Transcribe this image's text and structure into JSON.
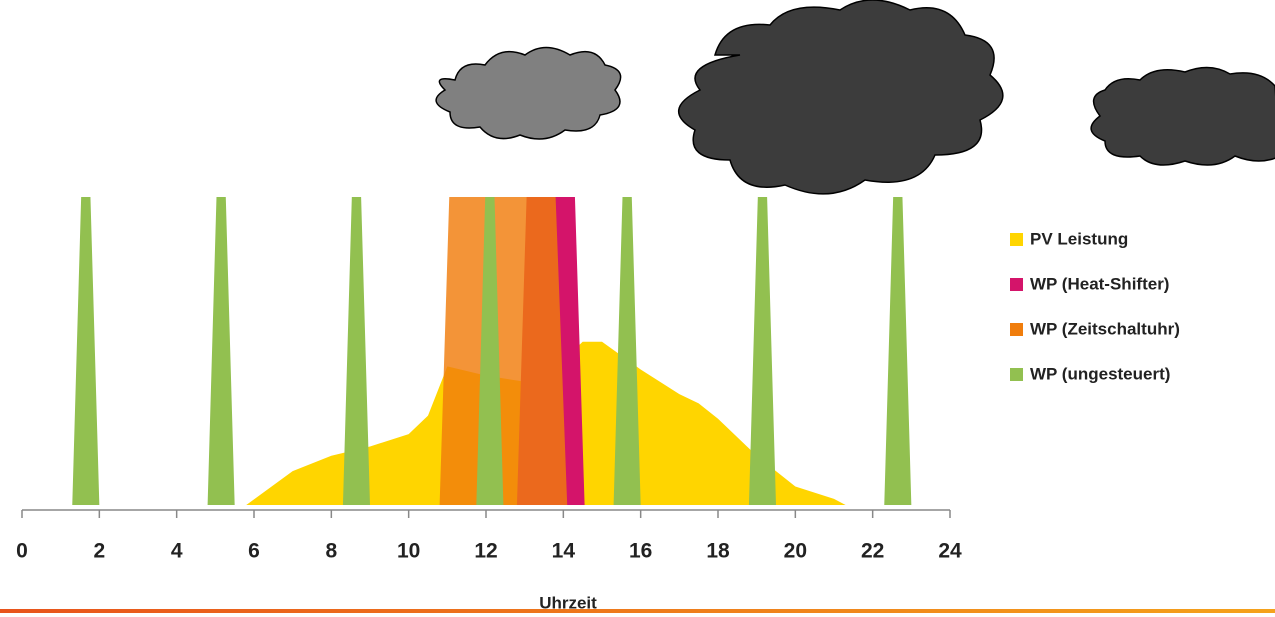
{
  "chart_data": {
    "type": "area",
    "x_label": "Uhrzeit",
    "xlim": [
      0,
      24
    ],
    "xticks": [
      0,
      2,
      4,
      6,
      8,
      10,
      12,
      14,
      16,
      18,
      20,
      22,
      24
    ],
    "ylim": [
      0,
      100
    ],
    "legend": "right",
    "series": [
      {
        "name": "PV Leistung",
        "color": "#ffd500",
        "x": [
          5.8,
          7,
          8,
          9,
          10,
          10.5,
          11,
          12,
          13,
          14,
          14.5,
          15,
          16,
          17,
          17.5,
          18,
          19,
          20,
          21,
          21.3
        ],
        "values": [
          0,
          11,
          16,
          19,
          23,
          29,
          45,
          42,
          40,
          47,
          53,
          53,
          44,
          36,
          33,
          28,
          16,
          6,
          2,
          0
        ]
      },
      {
        "name": "WP (Heat-Shifter)",
        "color": "#d4146a",
        "x": [
          12.8,
          13.05,
          14.3,
          14.55
        ],
        "values": [
          0,
          100,
          100,
          0
        ]
      },
      {
        "name": "WP (Zeitschaltuhr)",
        "color": "#f07d0c",
        "x": [
          10.8,
          11.05,
          13.8,
          14.1
        ],
        "values": [
          0,
          100,
          100,
          0
        ]
      },
      {
        "name": "WP (ungesteuert)",
        "color": "#92c050",
        "x": [
          1.3,
          1.53,
          1.77,
          2.0,
          null,
          4.8,
          5.03,
          5.27,
          5.5,
          null,
          8.3,
          8.53,
          8.77,
          9.0,
          null,
          11.75,
          11.98,
          12.22,
          12.45,
          null,
          15.3,
          15.53,
          15.77,
          16.0,
          null,
          18.8,
          19.03,
          19.27,
          19.5,
          null,
          22.3,
          22.53,
          22.77,
          23.0
        ],
        "values": [
          0,
          100,
          100,
          0,
          null,
          0,
          100,
          100,
          0,
          null,
          0,
          100,
          100,
          0,
          null,
          0,
          100,
          100,
          0,
          null,
          0,
          100,
          100,
          0,
          null,
          0,
          100,
          100,
          0,
          null,
          0,
          100,
          100,
          0
        ]
      }
    ]
  }
}
